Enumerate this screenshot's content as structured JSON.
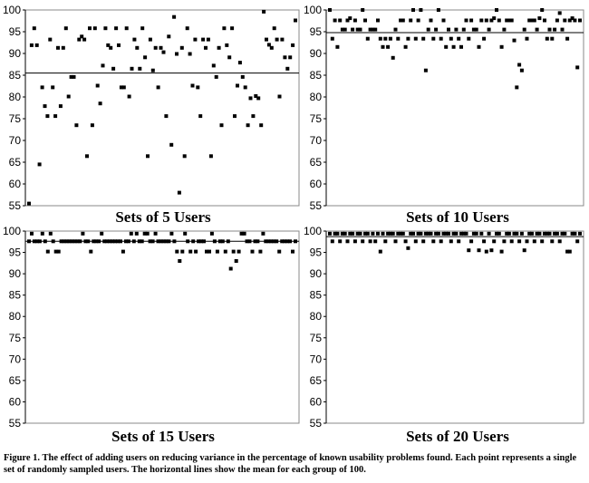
{
  "caption": "Figure 1. The effect of adding users on reducing variance in the percentage of known usability problems found. Each point represents a single set of randomly sampled users. The horizontal lines show the mean for each group of 100.",
  "chart_data": [
    {
      "type": "scatter",
      "title": "Sets of 5 Users",
      "ylim": [
        55,
        100
      ],
      "yticks": [
        55,
        60,
        65,
        70,
        75,
        80,
        85,
        90,
        95,
        100
      ],
      "mean": 85.5,
      "grid": false,
      "y": [
        55.5,
        91.9,
        95.8,
        91.9,
        64.5,
        82.2,
        77.9,
        75.6,
        93.2,
        82.2,
        75.6,
        91.3,
        77.9,
        91.3,
        95.8,
        80.1,
        84.6,
        84.6,
        73.5,
        93.2,
        93.9,
        93.2,
        66.4,
        95.8,
        73.5,
        95.8,
        82.6,
        78.5,
        87.2,
        95.8,
        91.9,
        91.3,
        86.5,
        95.8,
        91.9,
        82.2,
        82.2,
        95.8,
        80.1,
        86.5,
        93.2,
        91.3,
        86.5,
        95.8,
        89.1,
        66.4,
        93.2,
        86.1,
        91.3,
        82.2,
        91.3,
        90.3,
        75.6,
        93.9,
        69.0,
        98.4,
        89.9,
        58.0,
        91.3,
        66.4,
        95.8,
        89.9,
        82.6,
        93.2,
        82.2,
        75.6,
        93.2,
        91.3,
        93.2,
        66.4,
        87.2,
        84.6,
        91.3,
        73.5,
        95.8,
        91.9,
        89.1,
        95.8,
        75.6,
        82.6,
        87.9,
        84.6,
        82.2,
        73.5,
        79.7,
        75.6,
        80.2,
        79.7,
        73.5,
        99.6,
        93.2,
        92.0,
        91.3,
        95.8,
        93.2,
        80.1,
        93.2,
        89.1,
        86.5,
        89.1,
        91.9,
        97.6
      ]
    },
    {
      "type": "scatter",
      "title": "Sets of 10 Users",
      "ylim": [
        55,
        100
      ],
      "yticks": [
        55,
        60,
        65,
        70,
        75,
        80,
        85,
        90,
        95,
        100
      ],
      "mean": 94.8,
      "grid": false,
      "y": [
        100,
        93.4,
        97.6,
        91.5,
        97.6,
        95.5,
        95.5,
        97.6,
        98.1,
        95.5,
        97.6,
        95.5,
        95.5,
        100,
        97.6,
        93.4,
        95.5,
        95.5,
        95.5,
        97.6,
        93.4,
        91.5,
        93.4,
        91.5,
        93.4,
        89.0,
        95.5,
        93.4,
        97.6,
        97.6,
        91.5,
        93.4,
        97.6,
        100,
        93.4,
        97.6,
        100,
        93.4,
        86.1,
        95.5,
        97.6,
        93.4,
        95.5,
        100,
        93.4,
        97.6,
        91.5,
        95.5,
        93.4,
        91.5,
        95.5,
        93.4,
        91.5,
        95.5,
        97.6,
        93.4,
        97.6,
        95.5,
        95.5,
        91.5,
        97.6,
        93.4,
        97.6,
        95.5,
        97.6,
        98.1,
        100,
        97.6,
        91.5,
        95.5,
        97.6,
        97.6,
        97.6,
        93.0,
        82.2,
        87.4,
        86.1,
        95.5,
        93.4,
        97.6,
        97.6,
        97.6,
        95.5,
        98.1,
        100,
        97.6,
        93.4,
        95.5,
        93.4,
        95.5,
        97.6,
        99.3,
        95.5,
        97.6,
        93.4,
        97.6,
        98.1,
        97.6,
        86.8,
        97.6
      ]
    },
    {
      "type": "scatter",
      "title": "Sets of 15 Users",
      "ylim": [
        55,
        100
      ],
      "yticks": [
        55,
        60,
        65,
        70,
        75,
        80,
        85,
        90,
        95,
        100
      ],
      "mean": 97.6,
      "grid": false,
      "y": [
        97.6,
        99.4,
        97.6,
        97.6,
        97.6,
        99.4,
        97.6,
        95.2,
        99.4,
        97.6,
        95.2,
        95.2,
        97.6,
        97.6,
        97.6,
        97.6,
        97.6,
        97.6,
        97.6,
        97.6,
        99.4,
        97.6,
        97.6,
        95.2,
        97.6,
        97.6,
        97.6,
        99.4,
        97.6,
        97.6,
        97.6,
        97.6,
        97.6,
        97.6,
        97.6,
        95.2,
        97.6,
        97.6,
        99.4,
        97.6,
        99.4,
        97.6,
        97.6,
        99.4,
        99.4,
        97.6,
        97.6,
        99.4,
        97.6,
        97.6,
        97.6,
        97.6,
        97.6,
        99.4,
        97.6,
        95.2,
        93.0,
        95.2,
        99.4,
        97.6,
        95.2,
        97.6,
        95.2,
        97.6,
        97.6,
        97.6,
        95.2,
        95.2,
        99.4,
        97.6,
        95.2,
        97.6,
        97.6,
        95.2,
        97.6,
        91.2,
        95.2,
        93.0,
        95.2,
        99.4,
        99.4,
        97.6,
        97.6,
        95.2,
        97.6,
        97.6,
        95.2,
        99.4,
        97.6,
        97.6,
        97.6,
        97.6,
        97.6,
        95.2,
        97.6,
        97.6,
        97.6,
        97.6,
        95.2,
        97.6
      ]
    },
    {
      "type": "scatter",
      "title": "Sets of 20 Users",
      "ylim": [
        55,
        100
      ],
      "yticks": [
        55,
        60,
        65,
        70,
        75,
        80,
        85,
        90,
        95,
        100
      ],
      "mean": 98.7,
      "grid": false,
      "y": [
        99.4,
        97.6,
        99.4,
        99.4,
        97.6,
        99.4,
        99.4,
        97.6,
        99.4,
        99.4,
        97.6,
        99.4,
        99.4,
        97.6,
        99.4,
        99.4,
        97.6,
        99.4,
        97.6,
        99.4,
        95.2,
        99.4,
        97.6,
        99.4,
        99.4,
        99.4,
        97.6,
        99.4,
        99.4,
        99.4,
        97.6,
        96.0,
        99.4,
        99.4,
        97.6,
        99.4,
        99.4,
        97.6,
        99.4,
        99.4,
        99.4,
        97.6,
        99.4,
        99.4,
        97.6,
        99.4,
        99.4,
        99.4,
        97.6,
        99.4,
        99.4,
        97.6,
        99.4,
        99.4,
        99.4,
        95.5,
        97.6,
        99.4,
        99.4,
        95.5,
        99.4,
        97.6,
        95.2,
        99.4,
        95.5,
        97.6,
        99.4,
        99.4,
        95.2,
        97.6,
        99.4,
        99.4,
        97.6,
        99.4,
        99.4,
        97.6,
        99.4,
        95.5,
        97.6,
        99.4,
        99.4,
        97.6,
        99.4,
        99.4,
        97.6,
        99.4,
        99.4,
        99.4,
        97.6,
        99.4,
        99.4,
        97.6,
        99.4,
        99.4,
        95.2,
        95.2,
        99.4,
        99.4,
        97.6,
        99.4
      ]
    }
  ]
}
